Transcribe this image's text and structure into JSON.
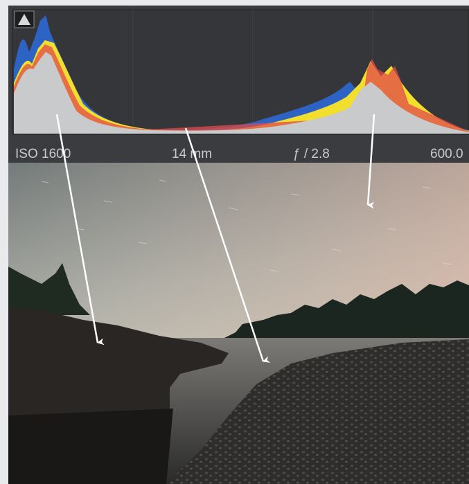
{
  "info_bar": {
    "iso": "ISO 1600",
    "focal_length": "14 mm",
    "aperture": "ƒ / 2.8",
    "shutter_speed": "600.0"
  }
}
